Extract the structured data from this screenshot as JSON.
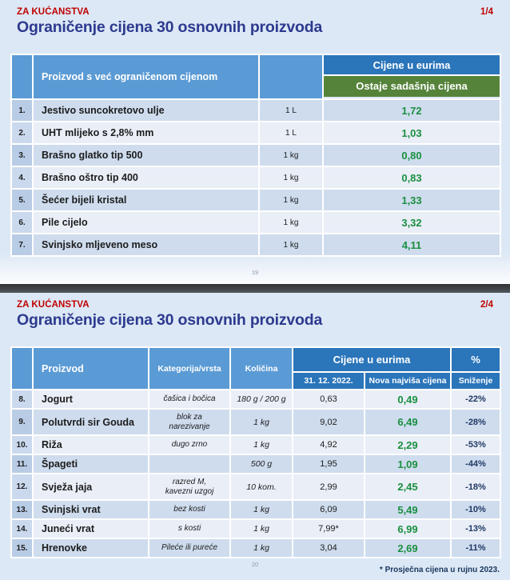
{
  "colors": {
    "slide_background": "#dce8f5",
    "header_medium_blue": "#5b9bd5",
    "header_dark_blue": "#2b75ba",
    "header_green": "#55833a",
    "row_band_dark": "#cedcee",
    "row_band_light": "#e9eef7",
    "number_column_blue": "#bccfe8",
    "price_green_text": "#1a8f3f",
    "discount_navy_text": "#1f3864",
    "brand_red": "#c00000",
    "title_blue": "#2d3a8f",
    "divider_dark": "#42464a"
  },
  "slide1": {
    "eyebrow": "ZA KUĆANSTVA",
    "page_indicator": "1/4",
    "title": "Ograničenje cijena 30 osnovnih proizvoda",
    "page_number": "19",
    "table": {
      "header": {
        "product": "Proizvod s već ograničenom cijenom",
        "price_group": "Cijene u eurima",
        "price_sub": "Ostaje sadašnja cijena"
      },
      "rows": [
        {
          "num": "1.",
          "product": "Jestivo suncokretovo ulje",
          "quantity": "1 L",
          "price": "1,72"
        },
        {
          "num": "2.",
          "product": "UHT mlijeko s 2,8% mm",
          "quantity": "1 L",
          "price": "1,03"
        },
        {
          "num": "3.",
          "product": "Brašno glatko tip 500",
          "quantity": "1 kg",
          "price": "0,80"
        },
        {
          "num": "4.",
          "product": "Brašno oštro tip 400",
          "quantity": "1 kg",
          "price": "0,83"
        },
        {
          "num": "5.",
          "product": "Šećer bijeli kristal",
          "quantity": "1 kg",
          "price": "1,33"
        },
        {
          "num": "6.",
          "product": "Pile cijelo",
          "quantity": "1 kg",
          "price": "3,32"
        },
        {
          "num": "7.",
          "product": "Svinjsko mljeveno meso",
          "quantity": "1 kg",
          "price": "4,11"
        }
      ]
    }
  },
  "slide2": {
    "eyebrow": "ZA KUĆANSTVA",
    "page_indicator": "2/4",
    "title": "Ograničenje cijena 30 osnovnih proizvoda",
    "page_number": "20",
    "footnote": "* Prosječna cijena u rujnu 2023.",
    "table": {
      "header": {
        "product": "Proizvod",
        "category": "Kategorija/vrsta",
        "quantity": "Količina",
        "price_group": "Cijene u eurima",
        "percent": "%",
        "price_old": "31. 12. 2022.",
        "price_new": "Nova najviša cijena",
        "percent_sub": "Sniženje"
      },
      "rows": [
        {
          "num": "8.",
          "product": "Jogurt",
          "category": "čašica i bočica",
          "quantity": "180 g / 200 g",
          "price_old": "0,63",
          "price_new": "0,49",
          "discount": "-22%"
        },
        {
          "num": "9.",
          "product": "Polutvrdi sir Gouda",
          "category": "blok za\nnarezivanje",
          "quantity": "1 kg",
          "price_old": "9,02",
          "price_new": "6,49",
          "discount": "-28%"
        },
        {
          "num": "10.",
          "product": "Riža",
          "category": "dugo zrno",
          "quantity": "1 kg",
          "price_old": "4,92",
          "price_new": "2,29",
          "discount": "-53%"
        },
        {
          "num": "11.",
          "product": "Špageti",
          "category": "",
          "quantity": "500 g",
          "price_old": "1,95",
          "price_new": "1,09",
          "discount": "-44%"
        },
        {
          "num": "12.",
          "product": "Svježa jaja",
          "category": "razred M,\nkavezni uzgoj",
          "quantity": "10 kom.",
          "price_old": "2,99",
          "price_new": "2,45",
          "discount": "-18%"
        },
        {
          "num": "13.",
          "product": "Svinjski vrat",
          "category": "bez kosti",
          "quantity": "1 kg",
          "price_old": "6,09",
          "price_new": "5,49",
          "discount": "-10%"
        },
        {
          "num": "14.",
          "product": "Juneći vrat",
          "category": "s kosti",
          "quantity": "1 kg",
          "price_old": "7,99*",
          "price_new": "6,99",
          "discount": "-13%"
        },
        {
          "num": "15.",
          "product": "Hrenovke",
          "category": "Pileće ili pureće",
          "quantity": "1 kg",
          "price_old": "3,04",
          "price_new": "2,69",
          "discount": "-11%"
        }
      ]
    }
  }
}
